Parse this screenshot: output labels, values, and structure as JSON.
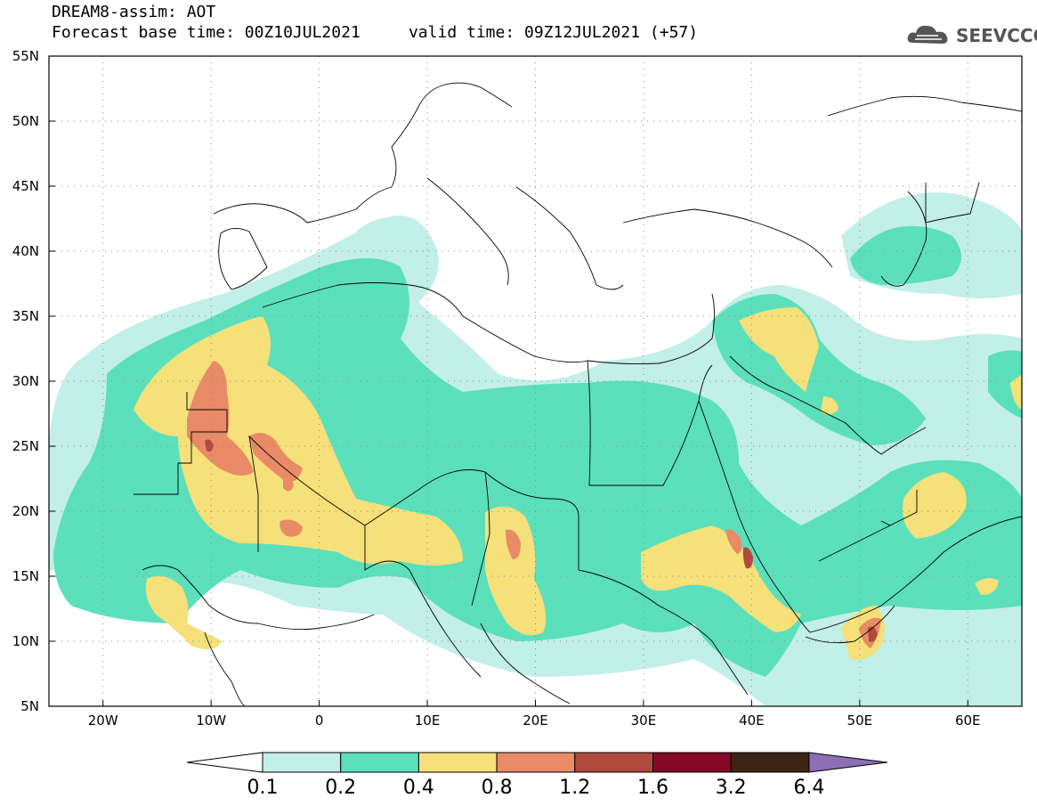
{
  "title": {
    "line1": "DREAM8-assim: AOT",
    "line2": "Forecast base time: 00Z10JUL2021     valid time: 09Z12JUL2021 (+57)"
  },
  "logo": {
    "text": "SEEVCCC",
    "icon": "cloud-icon"
  },
  "map": {
    "lon_range": [
      -25,
      65
    ],
    "lat_range": [
      5,
      55
    ],
    "y_ticks": [
      {
        "lat": 55,
        "label": "55N"
      },
      {
        "lat": 50,
        "label": "50N"
      },
      {
        "lat": 45,
        "label": "45N"
      },
      {
        "lat": 40,
        "label": "40N"
      },
      {
        "lat": 35,
        "label": "35N"
      },
      {
        "lat": 30,
        "label": "30N"
      },
      {
        "lat": 25,
        "label": "25N"
      },
      {
        "lat": 20,
        "label": "20N"
      },
      {
        "lat": 15,
        "label": "15N"
      },
      {
        "lat": 10,
        "label": "10N"
      },
      {
        "lat": 5,
        "label": "5N"
      }
    ],
    "x_ticks": [
      {
        "lon": -20,
        "label": "20W"
      },
      {
        "lon": -10,
        "label": "10W"
      },
      {
        "lon": 0,
        "label": "0"
      },
      {
        "lon": 10,
        "label": "10E"
      },
      {
        "lon": 20,
        "label": "20E"
      },
      {
        "lon": 30,
        "label": "30E"
      },
      {
        "lon": 40,
        "label": "40E"
      },
      {
        "lon": 50,
        "label": "50E"
      },
      {
        "lon": 60,
        "label": "60E"
      }
    ],
    "grid": "dotted"
  },
  "colorbar": {
    "boundaries": [
      "0.1",
      "0.2",
      "0.4",
      "0.8",
      "1.2",
      "1.6",
      "3.2",
      "6.4"
    ],
    "colors": [
      "#ffffff",
      "#c2efe8",
      "#5ce0bc",
      "#f5e07a",
      "#e98b66",
      "#b04a3c",
      "#850a2a",
      "#3d2414",
      "#8c6fb4"
    ]
  }
}
